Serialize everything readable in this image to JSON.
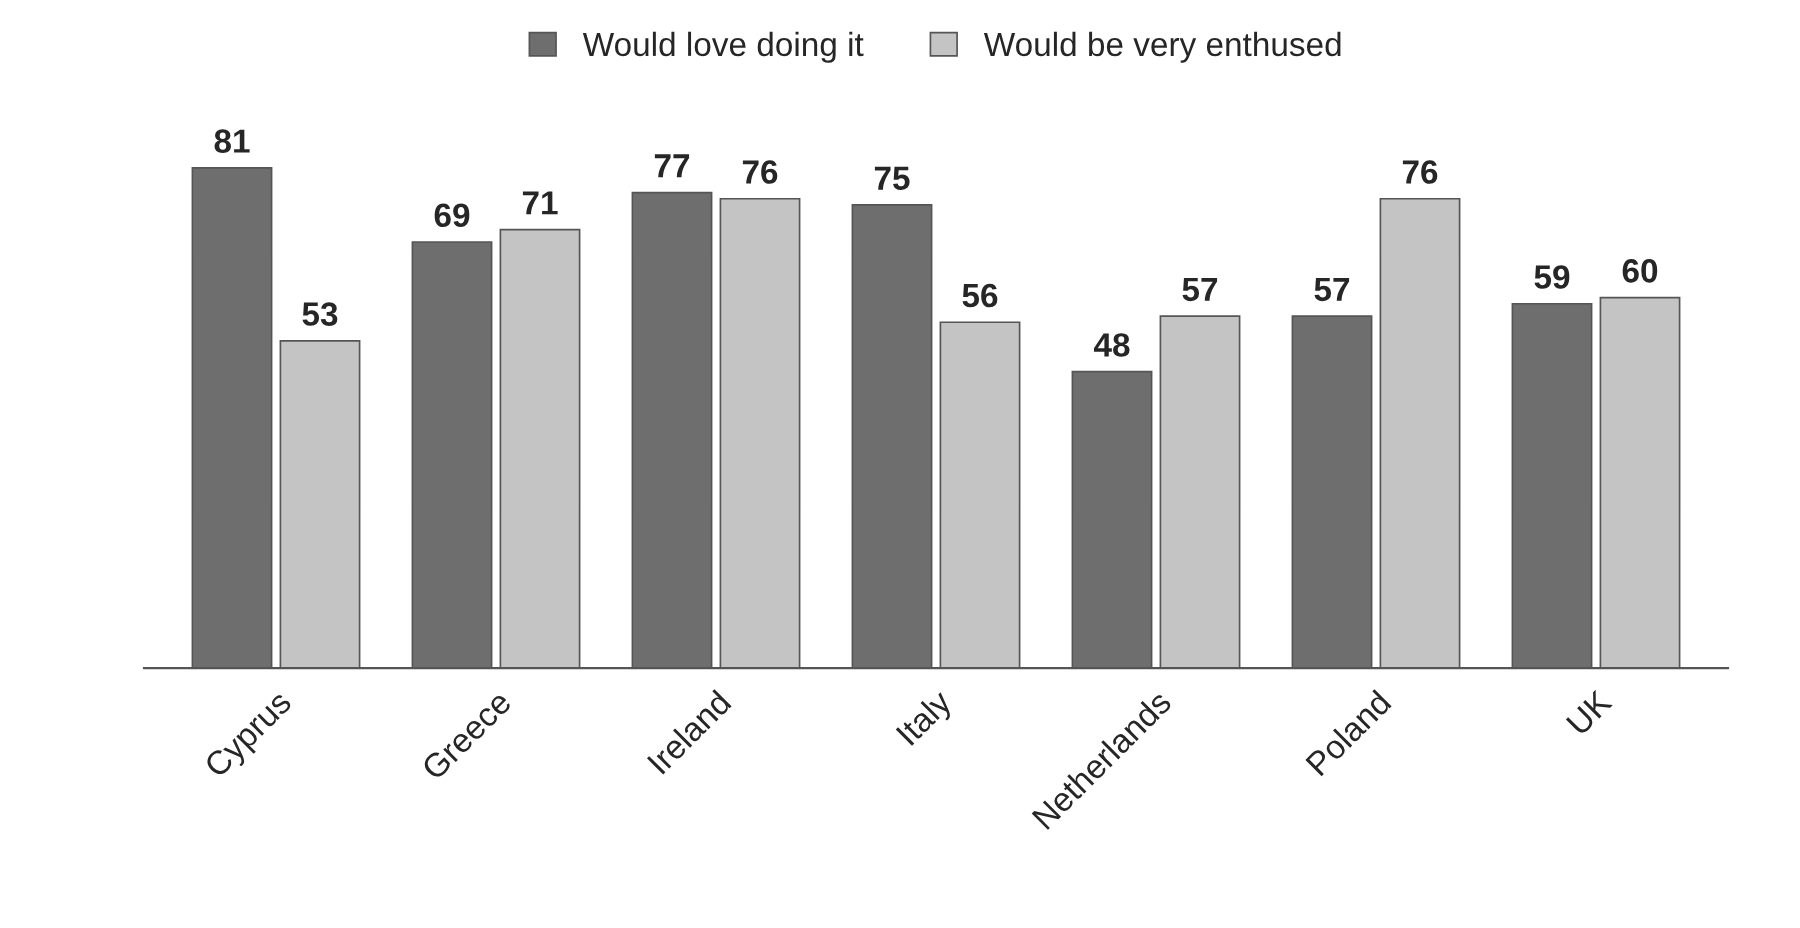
{
  "chart_data": {
    "type": "bar",
    "categories": [
      "Cyprus",
      "Greece",
      "Ireland",
      "Italy",
      "Netherlands",
      "Poland",
      "UK"
    ],
    "series": [
      {
        "name": "Would love doing it",
        "color": "#6e6e6e",
        "values": [
          81,
          69,
          77,
          75,
          48,
          57,
          59
        ]
      },
      {
        "name": "Would be very enthused",
        "color": "#c4c4c4",
        "values": [
          53,
          71,
          76,
          56,
          57,
          76,
          60
        ]
      }
    ],
    "data_labels": true,
    "legend": "top",
    "grid": false
  }
}
